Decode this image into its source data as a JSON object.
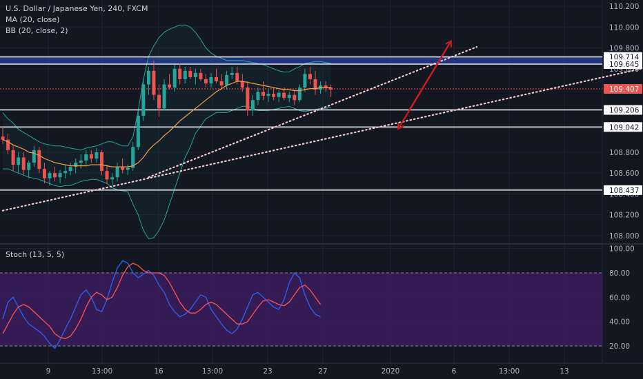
{
  "header": {
    "title": "U.S. Dollar / Japanese Yen, 240, FXCM",
    "ma": "MA (20, close)",
    "bb": "BB (20, close, 2)"
  },
  "stoch_label": "Stoch (13, 5, 5)",
  "chart_data": [
    {
      "type": "candlestick",
      "title": "U.S. Dollar / Japanese Yen, 240, FXCM",
      "ylim": [
        107.95,
        110.25
      ],
      "y_ticks": [
        "110.200",
        "110.000",
        "109.800",
        "109.600",
        "108.800",
        "108.600",
        "108.400",
        "108.200",
        "108.000"
      ],
      "x_ticks": [
        "9",
        "13:00",
        "16",
        "13:00",
        "23",
        "27",
        "2020",
        "6",
        "13:00",
        "13"
      ],
      "indicators": [
        "MA (20, close)",
        "BB (20, close, 2)"
      ],
      "colors": {
        "up": "#26a69a",
        "down": "#ef5350",
        "ma": "#f5a142",
        "bb": "#26a69a"
      },
      "price_levels": [
        {
          "label": "109.714",
          "value": 109.714,
          "style": "band"
        },
        {
          "label": "109.645",
          "value": 109.645,
          "style": "band"
        },
        {
          "label": "109.407",
          "value": 109.407,
          "style": "last-price"
        },
        {
          "label": "109.206",
          "value": 109.206,
          "style": "line"
        },
        {
          "label": "109.042",
          "value": 109.042,
          "style": "line"
        },
        {
          "label": "108.437",
          "value": 108.437,
          "style": "line"
        }
      ],
      "trendlines": [
        {
          "from": [
            0,
            108.24
          ],
          "to": [
            127,
            109.65
          ]
        },
        {
          "from": [
            28,
            108.56
          ],
          "to": [
            91,
            109.81
          ]
        }
      ],
      "arrows": [
        {
          "from": [
            78,
            109.2
          ],
          "to": [
            86,
            109.86
          ]
        },
        {
          "from": [
            86,
            109.86
          ],
          "to": [
            76,
            109.03
          ]
        }
      ],
      "candles": [
        [
          108.95,
          109.05,
          108.88,
          108.92
        ],
        [
          108.92,
          108.98,
          108.78,
          108.82
        ],
        [
          108.82,
          108.87,
          108.62,
          108.68
        ],
        [
          108.68,
          108.8,
          108.6,
          108.75
        ],
        [
          108.75,
          108.8,
          108.58,
          108.63
        ],
        [
          108.63,
          108.72,
          108.55,
          108.7
        ],
        [
          108.7,
          108.86,
          108.66,
          108.82
        ],
        [
          108.82,
          108.85,
          108.6,
          108.64
        ],
        [
          108.64,
          108.7,
          108.5,
          108.55
        ],
        [
          108.55,
          108.62,
          108.48,
          108.6
        ],
        [
          108.6,
          108.66,
          108.52,
          108.56
        ],
        [
          108.56,
          108.63,
          108.5,
          108.6
        ],
        [
          108.6,
          108.68,
          108.55,
          108.62
        ],
        [
          108.62,
          108.7,
          108.58,
          108.66
        ],
        [
          108.66,
          108.74,
          108.6,
          108.7
        ],
        [
          108.7,
          108.78,
          108.64,
          108.72
        ],
        [
          108.72,
          108.82,
          108.68,
          108.78
        ],
        [
          108.78,
          108.82,
          108.7,
          108.74
        ],
        [
          108.74,
          108.84,
          108.7,
          108.8
        ],
        [
          108.8,
          108.82,
          108.58,
          108.62
        ],
        [
          108.62,
          108.68,
          108.5,
          108.54
        ],
        [
          108.54,
          108.6,
          108.48,
          108.56
        ],
        [
          108.56,
          108.7,
          108.52,
          108.66
        ],
        [
          108.66,
          108.74,
          108.6,
          108.63
        ],
        [
          108.63,
          108.68,
          108.58,
          108.65
        ],
        [
          108.65,
          108.9,
          108.62,
          108.85
        ],
        [
          108.85,
          109.2,
          108.82,
          109.15
        ],
        [
          109.15,
          109.5,
          109.1,
          109.45
        ],
        [
          109.45,
          109.62,
          109.35,
          109.58
        ],
        [
          109.58,
          109.68,
          109.3,
          109.35
        ],
        [
          109.35,
          109.45,
          109.14,
          109.22
        ],
        [
          109.22,
          109.5,
          109.2,
          109.45
        ],
        [
          109.45,
          109.55,
          109.4,
          109.42
        ],
        [
          109.42,
          109.64,
          109.38,
          109.6
        ],
        [
          109.6,
          109.65,
          109.45,
          109.5
        ],
        [
          109.5,
          109.62,
          109.46,
          109.58
        ],
        [
          109.58,
          109.62,
          109.5,
          109.52
        ],
        [
          109.52,
          109.6,
          109.45,
          109.56
        ],
        [
          109.56,
          109.6,
          109.48,
          109.5
        ],
        [
          109.5,
          109.55,
          109.42,
          109.46
        ],
        [
          109.46,
          109.56,
          109.42,
          109.52
        ],
        [
          109.52,
          109.6,
          109.46,
          109.48
        ],
        [
          109.48,
          109.55,
          109.4,
          109.44
        ],
        [
          109.44,
          109.58,
          109.4,
          109.54
        ],
        [
          109.54,
          109.62,
          109.5,
          109.56
        ],
        [
          109.56,
          109.62,
          109.45,
          109.48
        ],
        [
          109.48,
          109.55,
          109.38,
          109.42
        ],
        [
          109.42,
          109.48,
          109.15,
          109.2
        ],
        [
          109.2,
          109.35,
          109.15,
          109.3
        ],
        [
          109.3,
          109.42,
          109.25,
          109.38
        ],
        [
          109.38,
          109.48,
          109.3,
          109.34
        ],
        [
          109.34,
          109.4,
          109.28,
          109.36
        ],
        [
          109.36,
          109.42,
          109.3,
          109.33
        ],
        [
          109.33,
          109.4,
          109.28,
          109.37
        ],
        [
          109.37,
          109.42,
          109.3,
          109.32
        ],
        [
          109.32,
          109.38,
          109.28,
          109.35
        ],
        [
          109.35,
          109.4,
          109.25,
          109.3
        ],
        [
          109.3,
          109.45,
          109.28,
          109.42
        ],
        [
          109.42,
          109.6,
          109.38,
          109.55
        ],
        [
          109.55,
          109.62,
          109.45,
          109.5
        ],
        [
          109.5,
          109.58,
          109.35,
          109.4
        ],
        [
          109.4,
          109.48,
          109.36,
          109.44
        ],
        [
          109.44,
          109.48,
          109.38,
          109.42
        ],
        [
          109.42,
          109.45,
          109.33,
          109.4
        ]
      ],
      "ma_values": [
        108.92,
        108.9,
        108.87,
        108.85,
        108.83,
        108.8,
        108.79,
        108.77,
        108.74,
        108.72,
        108.7,
        108.69,
        108.68,
        108.67,
        108.67,
        108.67,
        108.67,
        108.68,
        108.68,
        108.68,
        108.67,
        108.66,
        108.66,
        108.66,
        108.66,
        108.67,
        108.7,
        108.75,
        108.82,
        108.87,
        108.91,
        108.96,
        109.0,
        109.05,
        109.1,
        109.14,
        109.18,
        109.22,
        109.26,
        109.3,
        109.34,
        109.38,
        109.41,
        109.44,
        109.46,
        109.48,
        109.48,
        109.47,
        109.46,
        109.45,
        109.44,
        109.43,
        109.42,
        109.41,
        109.4,
        109.4,
        109.39,
        109.39,
        109.4,
        109.41,
        109.41,
        109.42,
        109.42,
        109.42
      ],
      "bb_upper": [
        109.18,
        109.12,
        109.08,
        109.02,
        108.99,
        108.96,
        108.93,
        108.9,
        108.88,
        108.87,
        108.86,
        108.86,
        108.85,
        108.84,
        108.83,
        108.82,
        108.84,
        108.85,
        108.86,
        108.88,
        108.9,
        108.9,
        108.88,
        108.86,
        108.86,
        108.95,
        109.2,
        109.5,
        109.72,
        109.82,
        109.9,
        109.95,
        109.98,
        110.0,
        110.02,
        110.02,
        110.0,
        109.95,
        109.88,
        109.8,
        109.75,
        109.72,
        109.7,
        109.68,
        109.68,
        109.68,
        109.68,
        109.67,
        109.66,
        109.65,
        109.64,
        109.62,
        109.6,
        109.58,
        109.57,
        109.57,
        109.6,
        109.62,
        109.65,
        109.66,
        109.67,
        109.67,
        109.66,
        109.65
      ],
      "bb_lower": [
        108.64,
        108.64,
        108.62,
        108.6,
        108.58,
        108.56,
        108.55,
        108.54,
        108.52,
        108.5,
        108.48,
        108.47,
        108.48,
        108.48,
        108.5,
        108.52,
        108.53,
        108.54,
        108.54,
        108.52,
        108.5,
        108.46,
        108.44,
        108.43,
        108.42,
        108.3,
        108.2,
        108.05,
        107.97,
        107.98,
        108.05,
        108.15,
        108.3,
        108.45,
        108.6,
        108.75,
        108.85,
        108.98,
        109.05,
        109.12,
        109.15,
        109.18,
        109.18,
        109.18,
        109.2,
        109.22,
        109.24,
        109.24,
        109.22,
        109.2,
        109.2,
        109.2,
        109.21,
        109.22,
        109.23,
        109.24,
        109.22,
        109.2,
        109.19,
        109.2,
        109.21,
        109.22,
        109.22,
        109.23
      ]
    },
    {
      "type": "line",
      "title": "Stoch (13, 5, 5)",
      "ylim": [
        10,
        100
      ],
      "y_ticks": [
        "100.00",
        "80.00",
        "60.00",
        "40.00",
        "20.00"
      ],
      "band": [
        20,
        80
      ],
      "series": [
        {
          "color": "#2962ff",
          "values": [
            42,
            56,
            60,
            52,
            44,
            38,
            35,
            32,
            28,
            22,
            18,
            25,
            34,
            42,
            52,
            62,
            66,
            60,
            50,
            48,
            58,
            72,
            84,
            90,
            88,
            80,
            76,
            79,
            82,
            78,
            70,
            64,
            54,
            48,
            44,
            46,
            50,
            56,
            62,
            60,
            50,
            44,
            38,
            33,
            30,
            34,
            42,
            52,
            62,
            64,
            60,
            56,
            52,
            50,
            58,
            72,
            80,
            76,
            62,
            52,
            46,
            44
          ]
        },
        {
          "color": "#ff5252",
          "values": [
            30,
            38,
            46,
            52,
            54,
            52,
            48,
            44,
            40,
            36,
            30,
            27,
            26,
            28,
            34,
            42,
            52,
            60,
            64,
            62,
            58,
            60,
            68,
            78,
            85,
            88,
            86,
            82,
            80,
            80,
            80,
            78,
            72,
            64,
            56,
            50,
            47,
            47,
            50,
            54,
            56,
            54,
            50,
            46,
            42,
            38,
            38,
            40,
            46,
            52,
            57,
            58,
            56,
            54,
            53,
            56,
            62,
            68,
            70,
            66,
            60,
            54
          ]
        }
      ]
    }
  ]
}
